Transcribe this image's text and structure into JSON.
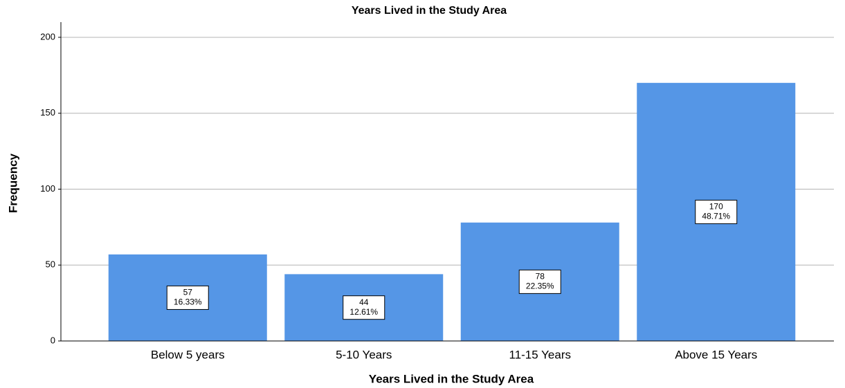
{
  "chart_data": {
    "type": "bar",
    "title": "Years Lived in the Study Area",
    "x_label": "Years Lived in the Study Area",
    "y_label": "Frequency",
    "categories": [
      "Below 5 years",
      "5-10 Years",
      "11-15 Years",
      "Above 15 Years"
    ],
    "values": [
      57,
      44,
      78,
      170
    ],
    "percent_labels": [
      "16.33%",
      "12.61%",
      "22.35%",
      "48.71%"
    ],
    "color": "#5596e6",
    "ylim": [
      0,
      210
    ],
    "yticks": [
      0,
      50,
      100,
      150,
      200
    ],
    "grid": true
  }
}
